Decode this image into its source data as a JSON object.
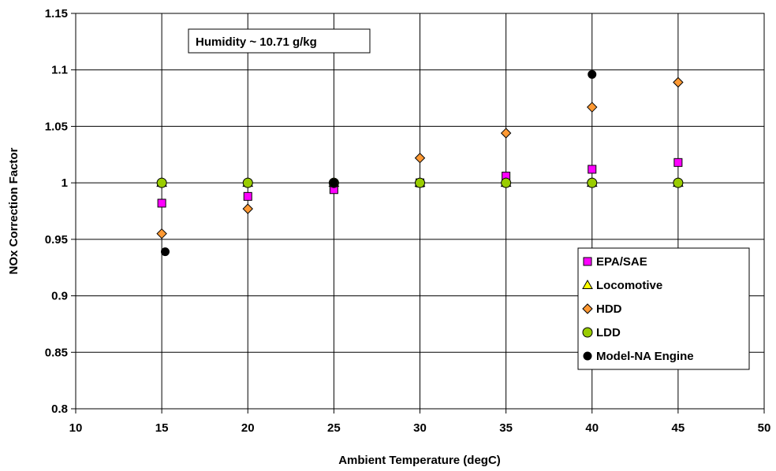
{
  "chart_data": {
    "type": "scatter",
    "title": "",
    "xlabel": "Ambient Temperature (degC)",
    "ylabel": "NOx Correction Factor",
    "xlim": [
      10,
      50
    ],
    "ylim": [
      0.8,
      1.15
    ],
    "xticks": [
      10,
      15,
      20,
      25,
      30,
      35,
      40,
      45,
      50
    ],
    "yticks": [
      0.8,
      0.85,
      0.9,
      0.95,
      1,
      1.05,
      1.1,
      1.15
    ],
    "xtick_labels": [
      "10",
      "15",
      "20",
      "25",
      "30",
      "35",
      "40",
      "45",
      "50"
    ],
    "ytick_labels": [
      "0.8",
      "0.85",
      "0.9",
      "0.95",
      "1",
      "1.05",
      "1.1",
      "1.15"
    ],
    "grid": true,
    "legend_placement": "bottom-right",
    "annotation": "Humidity ~ 10.71 g/kg",
    "series": [
      {
        "name": "EPA/SAE",
        "marker": "square",
        "color": "#ff00ff",
        "x": [
          15,
          20,
          25,
          30,
          35,
          40,
          45
        ],
        "y": [
          0.982,
          0.988,
          0.994,
          1.0,
          1.006,
          1.012,
          1.018
        ]
      },
      {
        "name": "Locomotive",
        "marker": "triangle",
        "color": "#ffff00",
        "x": [
          15,
          20,
          25,
          30,
          35,
          40,
          45
        ],
        "y": [
          1.0,
          1.0,
          1.0,
          1.0,
          1.0,
          1.0,
          1.0
        ]
      },
      {
        "name": "HDD",
        "marker": "diamond",
        "color": "#ff9933",
        "x": [
          15,
          20,
          25,
          30,
          35,
          40,
          45
        ],
        "y": [
          0.955,
          0.977,
          1.0,
          1.022,
          1.044,
          1.067,
          1.089
        ]
      },
      {
        "name": "LDD",
        "marker": "circle",
        "color": "#99cc00",
        "x": [
          15,
          20,
          25,
          30,
          35,
          40,
          45
        ],
        "y": [
          1.0,
          1.0,
          1.0,
          1.0,
          1.0,
          1.0,
          1.0
        ]
      },
      {
        "name": "Model-NA Engine",
        "marker": "circle-small",
        "color": "#000000",
        "x": [
          15.2,
          25,
          40
        ],
        "y": [
          0.939,
          1.0,
          1.096
        ]
      }
    ]
  }
}
